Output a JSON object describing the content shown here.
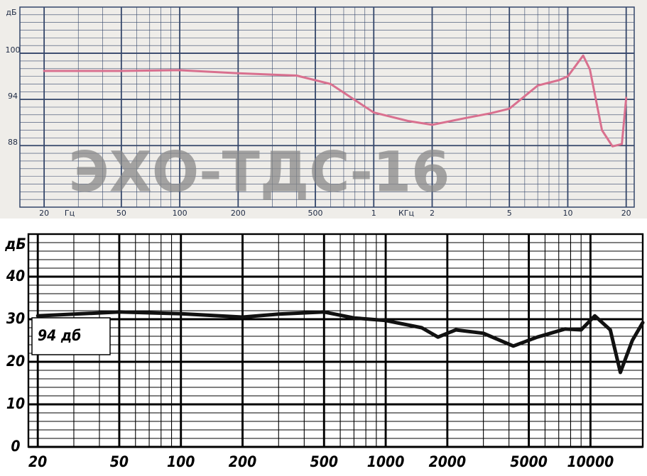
{
  "chart_data": [
    {
      "type": "line",
      "y_label": "дБ",
      "annotations": [
        "Гц",
        "КГц",
        "ЭХО-ТДС-16"
      ],
      "x": [
        20,
        50,
        100,
        200,
        400,
        600,
        1000,
        1500,
        2000,
        3000,
        4000,
        5000,
        7000,
        9000,
        10000,
        12000,
        13000,
        15000,
        17000,
        19000,
        20000
      ],
      "values": [
        97.7,
        97.7,
        97.8,
        97.4,
        97.1,
        96.0,
        92.3,
        91.2,
        90.7,
        91.6,
        92.2,
        92.8,
        95.8,
        96.5,
        97.0,
        99.7,
        97.9,
        90.0,
        87.9,
        88.2,
        94.2
      ],
      "color": "#d9708f",
      "log_x": true,
      "grid": true,
      "xlim": [
        15,
        22000
      ],
      "ylim": [
        80,
        106
      ],
      "xticks": [
        20,
        50,
        100,
        200,
        500,
        {
          "value": 1000,
          "label": "1"
        },
        {
          "value": 2000,
          "label": "2"
        },
        {
          "value": 5000,
          "label": "5"
        },
        {
          "value": 10000,
          "label": "10"
        },
        {
          "value": 20000,
          "label": "20"
        }
      ],
      "yticks": [
        88,
        94,
        100
      ]
    },
    {
      "type": "line",
      "y_label": "дБ",
      "annotations": [
        "94 дб"
      ],
      "x": [
        20,
        50,
        100,
        200,
        300,
        500,
        700,
        1000,
        1500,
        1800,
        2200,
        3000,
        4200,
        5500,
        7500,
        9000,
        10500,
        12500,
        14000,
        16000,
        18000
      ],
      "values": [
        30.8,
        31.7,
        31.3,
        30.5,
        31.2,
        31.7,
        30.3,
        29.7,
        28.0,
        25.8,
        27.5,
        26.7,
        23.7,
        25.8,
        27.7,
        27.5,
        30.8,
        27.5,
        17.5,
        25.0,
        29.2
      ],
      "color": "#111111",
      "log_x": true,
      "grid": true,
      "xlim": [
        18,
        18000
      ],
      "ylim": [
        0,
        50
      ],
      "xticks": [
        20,
        50,
        100,
        200,
        500,
        1000,
        2000,
        5000,
        10000
      ],
      "yticks": [
        0,
        10,
        20,
        30,
        40
      ]
    }
  ]
}
